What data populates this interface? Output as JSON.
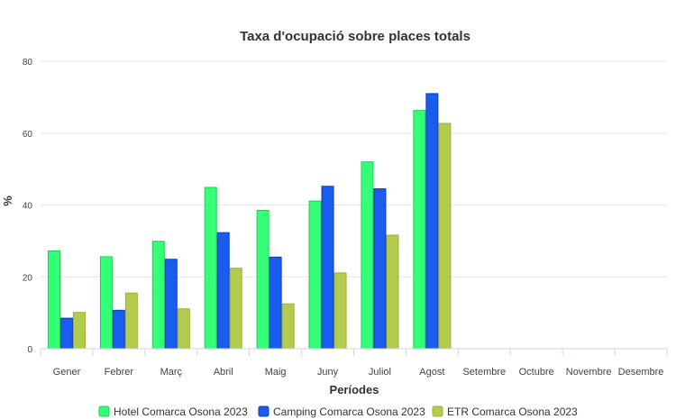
{
  "chart_data": {
    "type": "bar",
    "title": "Taxa d'ocupació sobre places totals",
    "xlabel": "Períodes",
    "ylabel": "%",
    "ylim": [
      0,
      80
    ],
    "yticks": [
      0,
      20,
      40,
      60,
      80
    ],
    "grid": true,
    "legend_position": "bottom",
    "categories": [
      "Gener",
      "Febrer",
      "Març",
      "Abril",
      "Maig",
      "Juny",
      "Juliol",
      "Agost",
      "Setembre",
      "Octubre",
      "Novembre",
      "Desembre"
    ],
    "series": [
      {
        "name": "Hotel Comarca Osona 2023",
        "color": "#33ff77",
        "stroke": "#22cc55",
        "values": [
          27.2,
          25.6,
          29.9,
          44.9,
          38.5,
          41.1,
          52.0,
          66.3,
          null,
          null,
          null,
          null
        ]
      },
      {
        "name": "Camping Comarca Osona 2023",
        "color": "#1a5cee",
        "stroke": "#0d3fb0",
        "values": [
          8.5,
          10.7,
          24.9,
          32.3,
          25.5,
          45.2,
          44.5,
          71.0,
          null,
          null,
          null,
          null
        ]
      },
      {
        "name": "ETR Comarca Osona 2023",
        "color": "#b3cc4d",
        "stroke": "#99b33a",
        "values": [
          10.1,
          15.5,
          11.1,
          22.4,
          12.5,
          21.1,
          31.6,
          62.7,
          null,
          null,
          null,
          null
        ]
      }
    ]
  }
}
